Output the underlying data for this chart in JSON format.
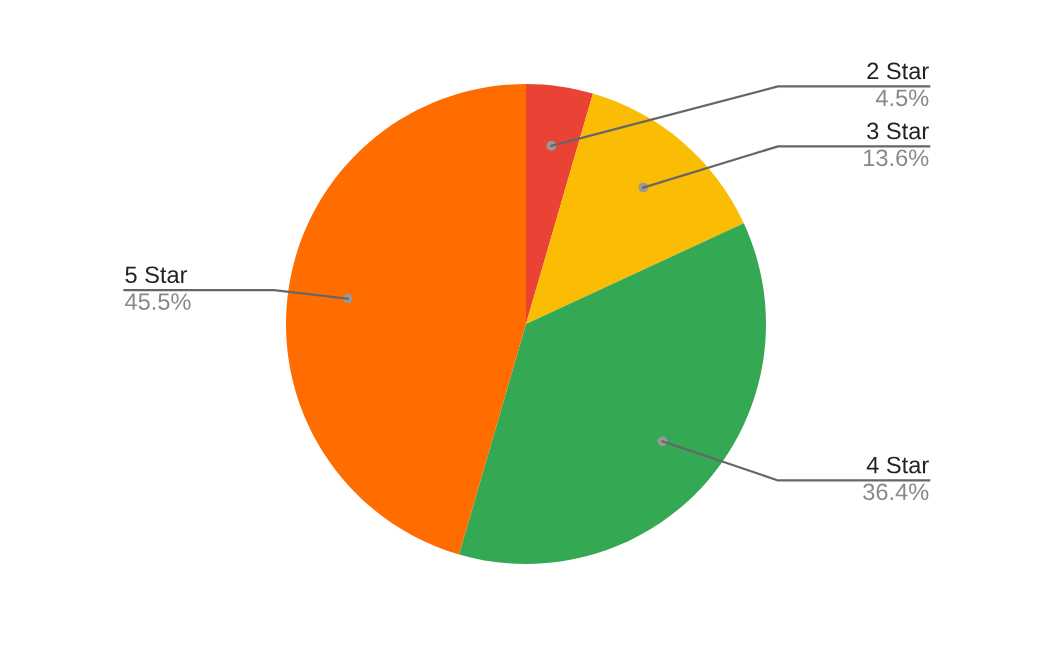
{
  "chart_data": {
    "type": "pie",
    "categories": [
      "2 Star",
      "3 Star",
      "4 Star",
      "5 Star"
    ],
    "values": [
      4.5,
      13.6,
      36.4,
      45.5
    ],
    "value_labels": [
      "4.5%",
      "13.6%",
      "36.4%",
      "45.5%"
    ],
    "colors": [
      "#ea4335",
      "#fbbc04",
      "#34a853",
      "#ff6d01"
    ],
    "legend": false
  }
}
